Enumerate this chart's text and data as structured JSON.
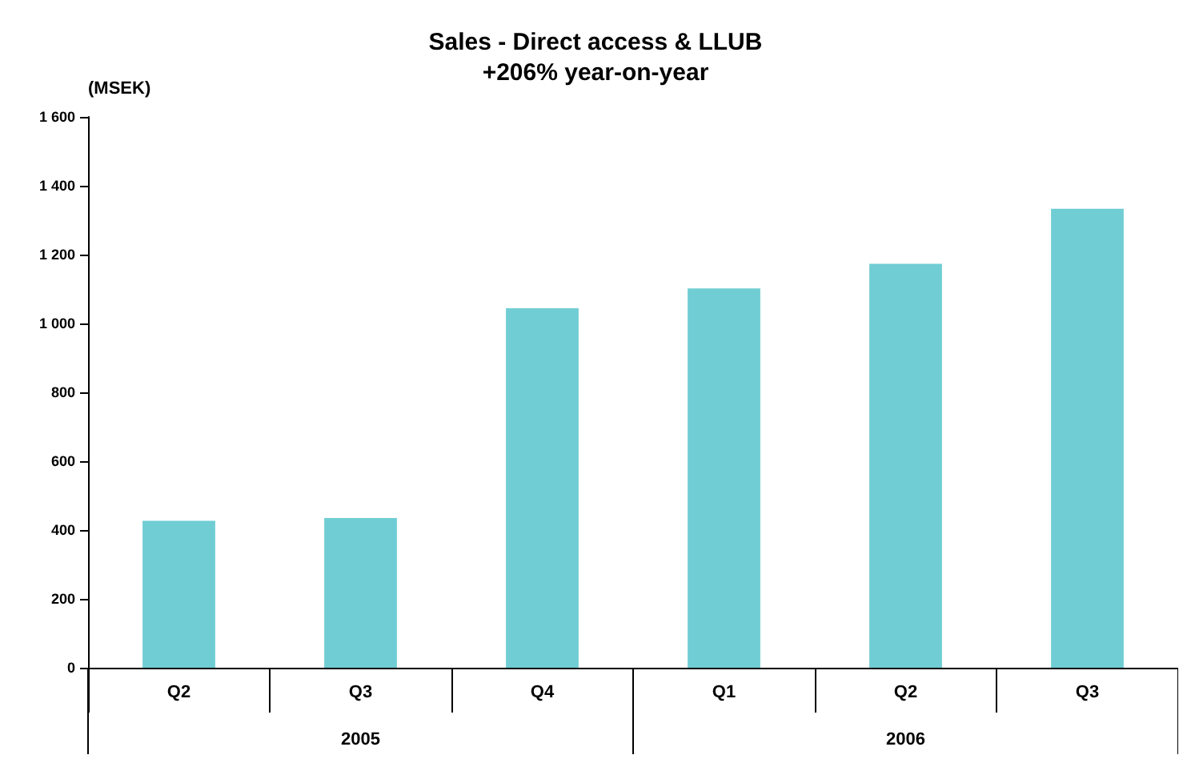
{
  "chart_data": {
    "type": "bar",
    "title": "Sales - Direct access & LLUB",
    "subtitle": "+206% year-on-year",
    "ylabel": "(MSEK)",
    "categories": [
      "Q2",
      "Q3",
      "Q4",
      "Q1",
      "Q2",
      "Q3"
    ],
    "values": [
      427,
      435,
      1044,
      1102,
      1173,
      1333
    ],
    "color": "#70cdd4",
    "ylim": [
      0,
      1600
    ],
    "yticks": [
      0,
      200,
      400,
      600,
      800,
      {
        "value": 1000,
        "label": "1 000"
      },
      {
        "value": 1200,
        "label": "1 200"
      },
      {
        "value": 1400,
        "label": "1 400"
      },
      {
        "value": 1600,
        "label": "1 600"
      }
    ],
    "grid": false,
    "annotations": [
      "2005",
      "2006"
    ]
  }
}
